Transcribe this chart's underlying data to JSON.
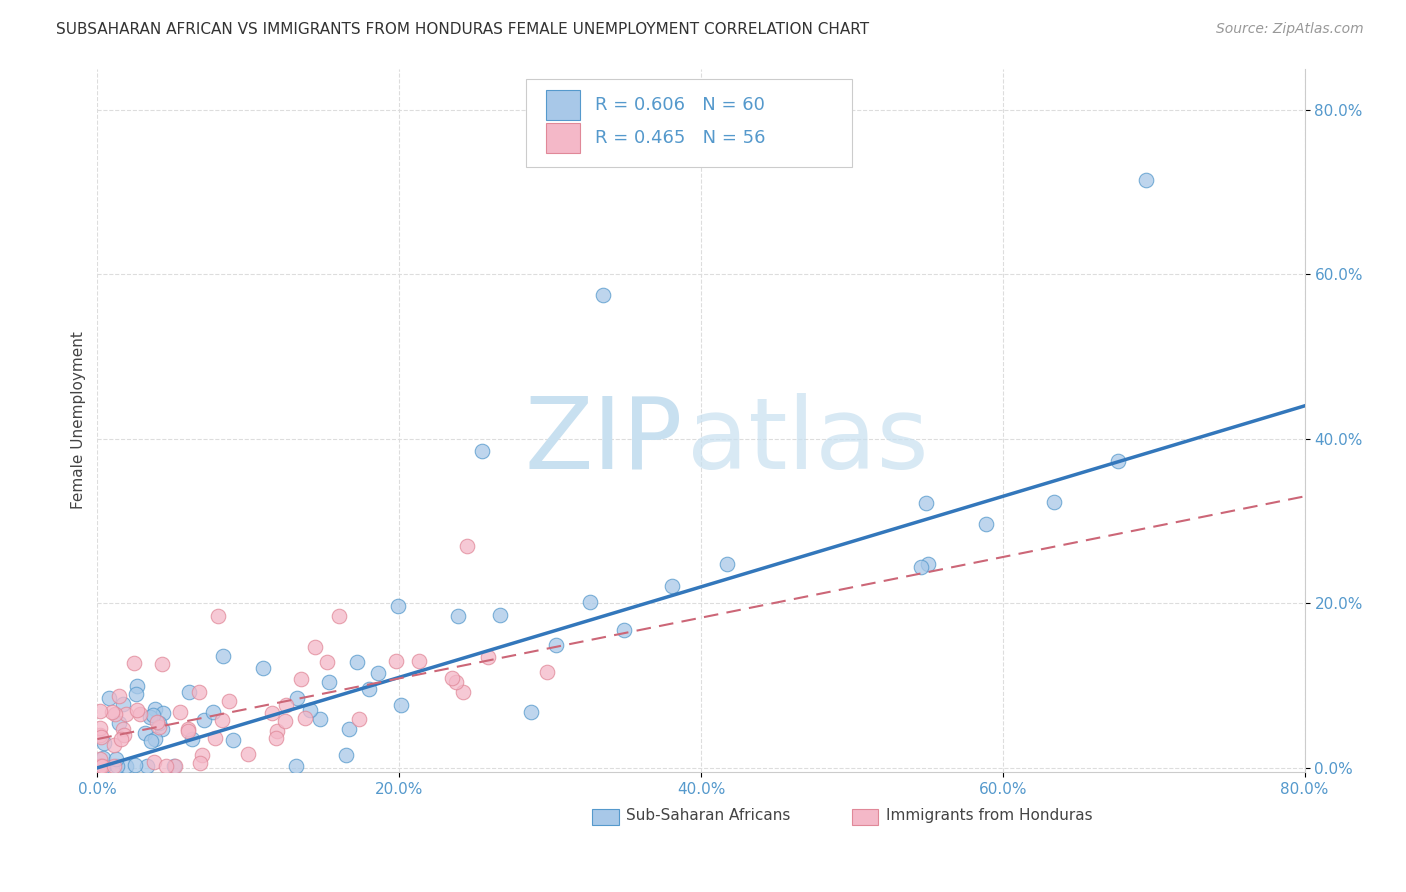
{
  "title": "SUBSAHARAN AFRICAN VS IMMIGRANTS FROM HONDURAS FEMALE UNEMPLOYMENT CORRELATION CHART",
  "source": "Source: ZipAtlas.com",
  "ylabel": "Female Unemployment",
  "xlim": [
    0,
    0.8
  ],
  "ylim": [
    -0.005,
    0.85
  ],
  "xticks": [
    0.0,
    0.2,
    0.4,
    0.6,
    0.8
  ],
  "yticks": [
    0.0,
    0.2,
    0.4,
    0.6,
    0.8
  ],
  "xtick_labels": [
    "0.0%",
    "20.0%",
    "40.0%",
    "60.0%",
    "80.0%"
  ],
  "ytick_labels": [
    "0.0%",
    "20.0%",
    "40.0%",
    "60.0%",
    "80.0%"
  ],
  "blue_color": "#a8c8e8",
  "pink_color": "#f4b8c8",
  "blue_edge_color": "#5599cc",
  "pink_edge_color": "#e08898",
  "blue_line_color": "#3377bb",
  "pink_line_color": "#cc6677",
  "tick_color": "#5599cc",
  "legend_r1": "R = 0.606",
  "legend_n1": "N = 60",
  "legend_r2": "R = 0.465",
  "legend_n2": "N = 56",
  "series1_label": "Sub-Saharan Africans",
  "series2_label": "Immigrants from Honduras",
  "watermark_zip": "ZIP",
  "watermark_atlas": "atlas",
  "background_color": "#ffffff",
  "title_fontsize": 11,
  "source_fontsize": 10,
  "axis_label_fontsize": 11,
  "tick_fontsize": 11,
  "legend_fontsize": 13,
  "watermark_fontsize": 72,
  "watermark_color": "#c8e0f0",
  "grid_color": "#dddddd",
  "blue_line_x0": 0.0,
  "blue_line_y0": 0.0,
  "blue_line_x1": 0.8,
  "blue_line_y1": 0.44,
  "pink_line_x0": 0.0,
  "pink_line_y0": 0.035,
  "pink_line_x1": 0.8,
  "pink_line_y1": 0.33
}
